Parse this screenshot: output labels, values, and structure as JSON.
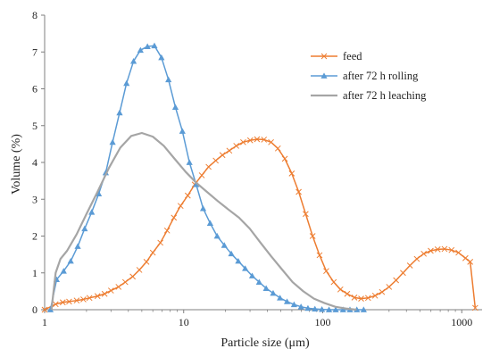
{
  "chart_data": {
    "type": "line",
    "title": "",
    "xlabel": "Particle size (μm)",
    "ylabel": "Volume (%)",
    "xscale": "log",
    "xlim": [
      1,
      1400
    ],
    "ylim": [
      0,
      8
    ],
    "x_ticks": [
      1,
      10,
      100,
      1000
    ],
    "x_tick_labels": [
      "1",
      "10",
      "100",
      "1000"
    ],
    "y_ticks": [
      0,
      1,
      2,
      3,
      4,
      5,
      6,
      7,
      8
    ],
    "y_tick_labels": [
      "0",
      "1",
      "2",
      "3",
      "4",
      "5",
      "6",
      "7",
      "8"
    ],
    "grid": false,
    "legend_position": "top-right",
    "series": [
      {
        "name": "feed",
        "color": "#ED7D31",
        "marker": "x",
        "points": [
          [
            1.0,
            0.0
          ],
          [
            1.2,
            0.15
          ],
          [
            1.35,
            0.2
          ],
          [
            1.5,
            0.22
          ],
          [
            1.7,
            0.25
          ],
          [
            1.9,
            0.28
          ],
          [
            2.1,
            0.32
          ],
          [
            2.4,
            0.37
          ],
          [
            2.7,
            0.43
          ],
          [
            3.0,
            0.52
          ],
          [
            3.4,
            0.62
          ],
          [
            3.8,
            0.75
          ],
          [
            4.3,
            0.9
          ],
          [
            4.8,
            1.08
          ],
          [
            5.4,
            1.3
          ],
          [
            6.0,
            1.55
          ],
          [
            6.8,
            1.82
          ],
          [
            7.6,
            2.15
          ],
          [
            8.5,
            2.5
          ],
          [
            9.5,
            2.82
          ],
          [
            10.7,
            3.1
          ],
          [
            12.0,
            3.4
          ],
          [
            13.5,
            3.65
          ],
          [
            15.1,
            3.88
          ],
          [
            17.0,
            4.05
          ],
          [
            19.0,
            4.2
          ],
          [
            21.3,
            4.32
          ],
          [
            23.9,
            4.45
          ],
          [
            26.8,
            4.55
          ],
          [
            30.1,
            4.6
          ],
          [
            33.7,
            4.63
          ],
          [
            37.8,
            4.62
          ],
          [
            42.5,
            4.55
          ],
          [
            47.6,
            4.38
          ],
          [
            53.4,
            4.1
          ],
          [
            59.9,
            3.7
          ],
          [
            67.2,
            3.2
          ],
          [
            75.4,
            2.6
          ],
          [
            84.6,
            2.0
          ],
          [
            94.9,
            1.48
          ],
          [
            106,
            1.05
          ],
          [
            120,
            0.75
          ],
          [
            134,
            0.55
          ],
          [
            150,
            0.43
          ],
          [
            169,
            0.33
          ],
          [
            189,
            0.3
          ],
          [
            212,
            0.32
          ],
          [
            238,
            0.38
          ],
          [
            267,
            0.48
          ],
          [
            300,
            0.62
          ],
          [
            337,
            0.8
          ],
          [
            378,
            1.0
          ],
          [
            424,
            1.2
          ],
          [
            475,
            1.38
          ],
          [
            533,
            1.52
          ],
          [
            598,
            1.6
          ],
          [
            671,
            1.64
          ],
          [
            752,
            1.65
          ],
          [
            844,
            1.62
          ],
          [
            947,
            1.55
          ],
          [
            1063,
            1.4
          ],
          [
            1150,
            1.3
          ],
          [
            1250,
            0.05
          ]
        ]
      },
      {
        "name": "after 72 h rolling",
        "color": "#5B9BD5",
        "marker": "triangle",
        "points": [
          [
            1.1,
            0.0
          ],
          [
            1.22,
            0.82
          ],
          [
            1.37,
            1.05
          ],
          [
            1.54,
            1.32
          ],
          [
            1.73,
            1.72
          ],
          [
            1.94,
            2.2
          ],
          [
            2.18,
            2.65
          ],
          [
            2.45,
            3.15
          ],
          [
            2.75,
            3.72
          ],
          [
            3.08,
            4.55
          ],
          [
            3.46,
            5.35
          ],
          [
            3.88,
            6.15
          ],
          [
            4.36,
            6.75
          ],
          [
            4.89,
            7.05
          ],
          [
            5.49,
            7.15
          ],
          [
            6.16,
            7.17
          ],
          [
            6.92,
            6.85
          ],
          [
            7.77,
            6.25
          ],
          [
            8.72,
            5.5
          ],
          [
            9.79,
            4.85
          ],
          [
            11.0,
            4.0
          ],
          [
            12.3,
            3.4
          ],
          [
            13.8,
            2.75
          ],
          [
            15.5,
            2.35
          ],
          [
            17.4,
            2.0
          ],
          [
            19.6,
            1.75
          ],
          [
            22.0,
            1.52
          ],
          [
            24.7,
            1.32
          ],
          [
            27.7,
            1.12
          ],
          [
            31.1,
            0.92
          ],
          [
            34.9,
            0.75
          ],
          [
            39.2,
            0.58
          ],
          [
            44.0,
            0.45
          ],
          [
            49.3,
            0.32
          ],
          [
            55.4,
            0.22
          ],
          [
            62.2,
            0.14
          ],
          [
            69.8,
            0.08
          ],
          [
            78.3,
            0.04
          ],
          [
            87.9,
            0.02
          ],
          [
            98.7,
            0.01
          ],
          [
            111,
            0.0
          ],
          [
            124,
            0.0
          ],
          [
            140,
            0.0
          ],
          [
            157,
            0.0
          ],
          [
            176,
            0.0
          ],
          [
            197,
            0.0
          ]
        ]
      },
      {
        "name": "after 72 h leaching",
        "color": "#A5A5A5",
        "marker": "none",
        "points": [
          [
            1.12,
            0.0
          ],
          [
            1.2,
            1.0
          ],
          [
            1.3,
            1.38
          ],
          [
            1.45,
            1.6
          ],
          [
            1.7,
            2.05
          ],
          [
            2.0,
            2.6
          ],
          [
            2.4,
            3.2
          ],
          [
            2.9,
            3.85
          ],
          [
            3.5,
            4.4
          ],
          [
            4.2,
            4.72
          ],
          [
            5.0,
            4.8
          ],
          [
            6.0,
            4.7
          ],
          [
            7.2,
            4.45
          ],
          [
            8.6,
            4.1
          ],
          [
            10.3,
            3.75
          ],
          [
            12.3,
            3.45
          ],
          [
            14.7,
            3.2
          ],
          [
            17.6,
            2.95
          ],
          [
            21.0,
            2.72
          ],
          [
            25.0,
            2.5
          ],
          [
            29.9,
            2.2
          ],
          [
            35.7,
            1.82
          ],
          [
            42.6,
            1.45
          ],
          [
            50.8,
            1.1
          ],
          [
            60.7,
            0.75
          ],
          [
            72.5,
            0.5
          ],
          [
            86.5,
            0.3
          ],
          [
            103,
            0.18
          ],
          [
            123,
            0.08
          ],
          [
            147,
            0.03
          ],
          [
            175,
            0.0
          ]
        ]
      }
    ]
  }
}
